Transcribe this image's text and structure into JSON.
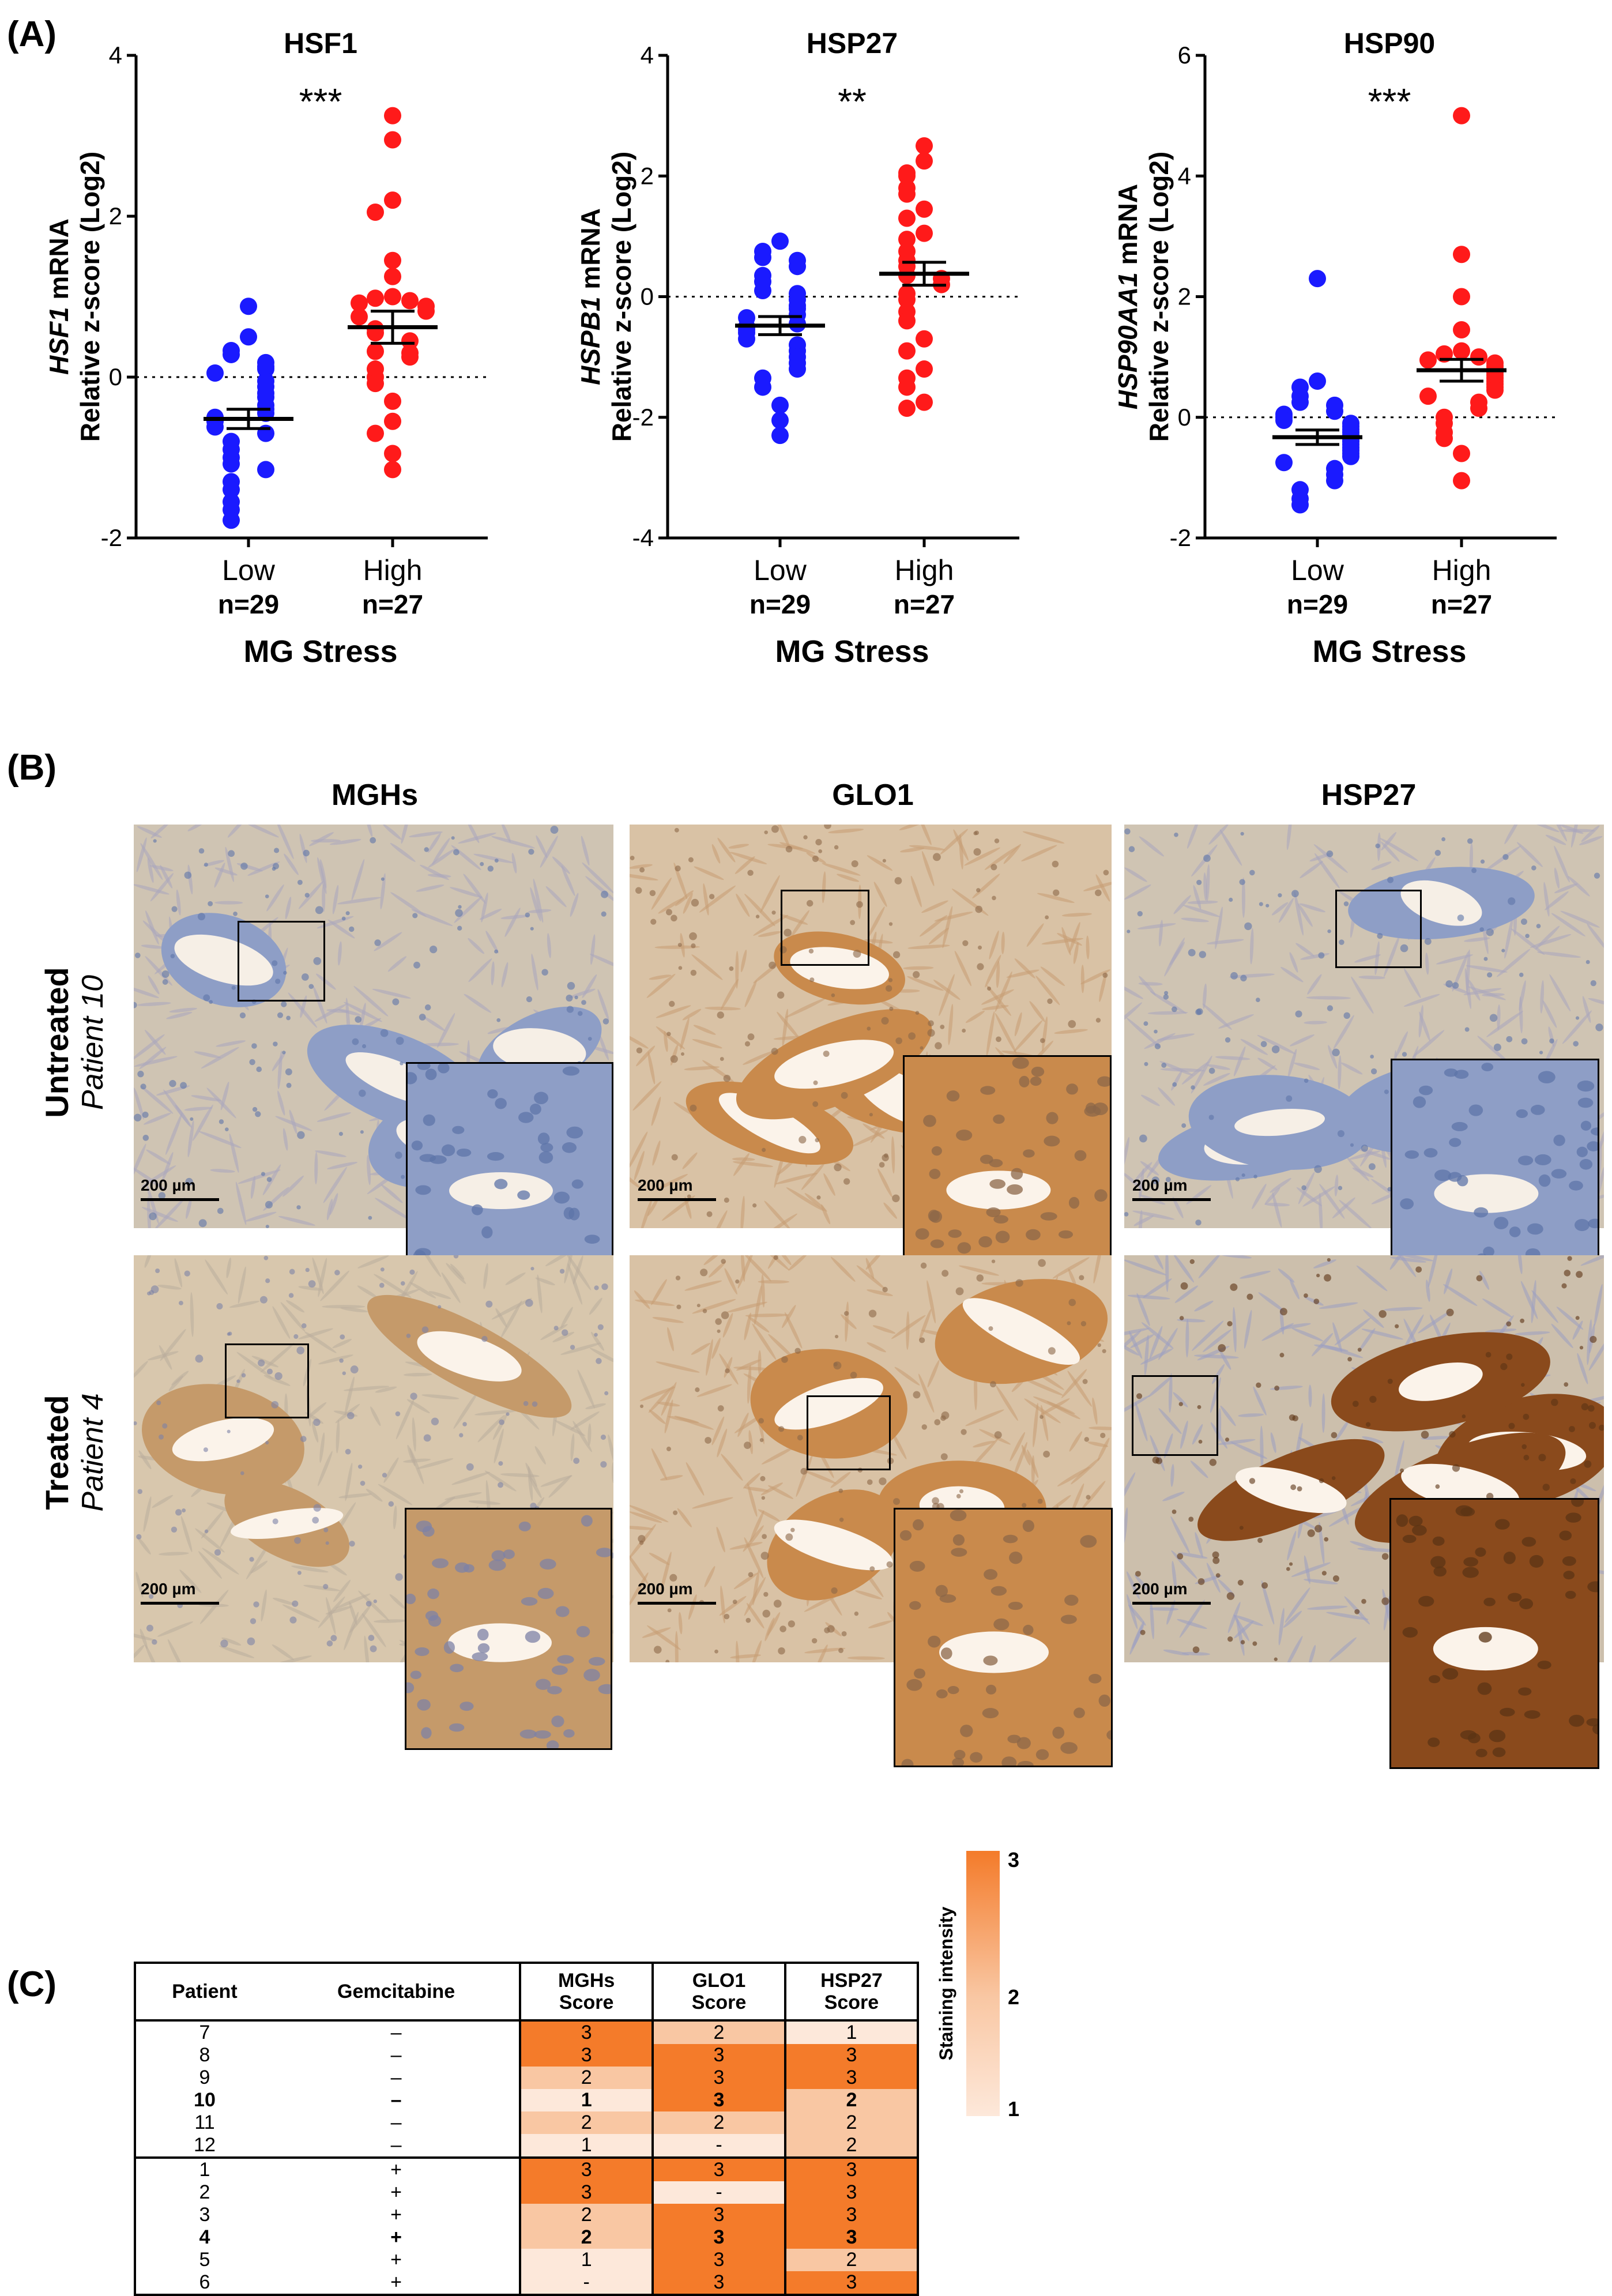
{
  "panel_labels": {
    "a": "(A)",
    "b": "(B)",
    "c": "(C)"
  },
  "chart_data": [
    {
      "type": "scatter",
      "title": "HSF1",
      "significance": "***",
      "ylabel_italic": "HSF1",
      "ylabel_suffix": " mRNA",
      "ylabel2": "Relative z-score (Log2)",
      "ylim": [
        -2,
        4
      ],
      "yticks": [
        -2,
        0,
        2,
        4
      ],
      "xlabel": "MG Stress",
      "groups": [
        {
          "name": "Low",
          "n": "n=29",
          "color": "#1a1aff",
          "values": [
            0.88,
            0.5,
            0.33,
            0.28,
            0.18,
            0.13,
            0.1,
            0.05,
            -0.05,
            -0.12,
            -0.2,
            -0.25,
            -0.35,
            -0.4,
            -0.45,
            -0.5,
            -0.55,
            -0.62,
            -0.7,
            -0.8,
            -0.9,
            -1.0,
            -1.08,
            -1.15,
            -1.3,
            -1.4,
            -1.55,
            -1.65,
            -1.78
          ],
          "mean": -0.52,
          "sem": 0.12
        },
        {
          "name": "High",
          "n": "n=27",
          "color": "#ff1a1a",
          "values": [
            3.25,
            2.95,
            2.2,
            2.05,
            1.45,
            1.25,
            1.0,
            0.98,
            0.95,
            0.92,
            0.88,
            0.82,
            0.75,
            0.6,
            0.55,
            0.45,
            0.32,
            0.3,
            0.25,
            0.1,
            0.0,
            -0.08,
            -0.3,
            -0.55,
            -0.7,
            -0.95,
            -1.15
          ],
          "mean": 0.62,
          "sem": 0.2
        }
      ]
    },
    {
      "type": "scatter",
      "title": "HSP27",
      "significance": "**",
      "ylabel_italic": "HSPB1",
      "ylabel_suffix": " mRNA",
      "ylabel2": "Relative z-score (Log2)",
      "ylim": [
        -4,
        4
      ],
      "yticks": [
        -4,
        -2,
        0,
        2,
        4
      ],
      "xlabel": "MG Stress",
      "groups": [
        {
          "name": "Low",
          "n": "n=29",
          "color": "#1a1aff",
          "values": [
            0.92,
            0.75,
            0.65,
            0.6,
            0.5,
            0.35,
            0.25,
            0.1,
            0.05,
            -0.05,
            -0.15,
            -0.2,
            -0.3,
            -0.35,
            -0.45,
            -0.5,
            -0.55,
            -0.6,
            -0.7,
            -0.8,
            -0.9,
            -1.0,
            -1.1,
            -1.2,
            -1.35,
            -1.5,
            -1.8,
            -2.05,
            -2.3
          ],
          "mean": -0.48,
          "sem": 0.15
        },
        {
          "name": "High",
          "n": "n=27",
          "color": "#ff1a1a",
          "values": [
            2.5,
            2.25,
            2.05,
            2.0,
            1.8,
            1.7,
            1.45,
            1.3,
            1.05,
            0.95,
            0.75,
            0.6,
            0.5,
            0.35,
            0.3,
            0.2,
            0.05,
            -0.05,
            -0.25,
            -0.4,
            -0.7,
            -0.9,
            -1.2,
            -1.35,
            -1.5,
            -1.75,
            -1.85
          ],
          "mean": 0.38,
          "sem": 0.19
        }
      ]
    },
    {
      "type": "scatter",
      "title": "HSP90",
      "significance": "***",
      "ylabel_italic": "HSP90AA1",
      "ylabel_suffix": " mRNA",
      "ylabel2": "Relative z-score (Log2)",
      "ylim": [
        -2,
        6
      ],
      "yticks": [
        -2,
        0,
        2,
        4,
        6
      ],
      "xlabel": "MG Stress",
      "groups": [
        {
          "name": "Low",
          "n": "n=29",
          "color": "#1a1aff",
          "values": [
            2.3,
            0.6,
            0.5,
            0.35,
            0.25,
            0.2,
            0.1,
            0.05,
            0.0,
            -0.05,
            -0.1,
            -0.15,
            -0.2,
            -0.25,
            -0.3,
            -0.35,
            -0.4,
            -0.45,
            -0.5,
            -0.55,
            -0.6,
            -0.65,
            -0.75,
            -0.85,
            -0.95,
            -1.05,
            -1.2,
            -1.35,
            -1.45
          ],
          "mean": -0.33,
          "sem": 0.12
        },
        {
          "name": "High",
          "n": "n=27",
          "color": "#ff1a1a",
          "values": [
            5.0,
            2.7,
            2.0,
            1.45,
            1.1,
            1.05,
            1.0,
            0.95,
            0.9,
            0.85,
            0.8,
            0.75,
            0.7,
            0.65,
            0.6,
            0.55,
            0.5,
            0.45,
            0.35,
            0.25,
            0.15,
            0.0,
            -0.1,
            -0.25,
            -0.35,
            -0.6,
            -1.05
          ],
          "mean": 0.78,
          "sem": 0.18
        }
      ]
    }
  ],
  "ihc": {
    "columns": [
      "MGHs",
      "GLO1",
      "HSP27"
    ],
    "rows": [
      {
        "label": "Untreated",
        "sublabel": "Patient 10"
      },
      {
        "label": "Treated",
        "sublabel": "Patient 4"
      }
    ],
    "scale_bar": "200 µm",
    "tiles": [
      {
        "name": "mghs-untreated",
        "tone": "blue"
      },
      {
        "name": "glo1-untreated",
        "tone": "brown"
      },
      {
        "name": "hsp27-untreated",
        "tone": "blue"
      },
      {
        "name": "mghs-treated",
        "tone": "light-brown"
      },
      {
        "name": "glo1-treated",
        "tone": "brown"
      },
      {
        "name": "hsp27-treated",
        "tone": "dark-brown"
      }
    ]
  },
  "table": {
    "headers": [
      "Patient",
      "Gemcitabine",
      "MGHs\nScore",
      "GLO1\nScore",
      "HSP27\nScore"
    ],
    "header_lines": [
      [
        "Patient"
      ],
      [
        "Gemcitabine"
      ],
      [
        "MGHs",
        "Score"
      ],
      [
        "GLO1",
        "Score"
      ],
      [
        "HSP27",
        "Score"
      ]
    ],
    "rows": [
      [
        "7",
        "–",
        "3",
        "2",
        "1"
      ],
      [
        "8",
        "–",
        "3",
        "3",
        "3"
      ],
      [
        "9",
        "–",
        "2",
        "3",
        "3"
      ],
      [
        "10",
        "–",
        "1",
        "3",
        "2"
      ],
      [
        "11",
        "–",
        "2",
        "2",
        "2"
      ],
      [
        "12",
        "–",
        "1",
        "-",
        "2"
      ],
      [
        "1",
        "+",
        "3",
        "3",
        "3"
      ],
      [
        "2",
        "+",
        "3",
        "-",
        "3"
      ],
      [
        "3",
        "+",
        "2",
        "3",
        "3"
      ],
      [
        "4",
        "+",
        "2",
        "3",
        "3"
      ],
      [
        "5",
        "+",
        "1",
        "3",
        "2"
      ],
      [
        "6",
        "+",
        "-",
        "3",
        "3"
      ]
    ],
    "bold_rows": [
      3,
      9
    ],
    "colors": {
      "3": "#f47b2a",
      "2": "#f9c7a3",
      "1": "#fde8da",
      "-": "#fde8da"
    },
    "legend_label": "Staining intensity",
    "legend_ticks": [
      "3",
      "2",
      "1"
    ]
  }
}
